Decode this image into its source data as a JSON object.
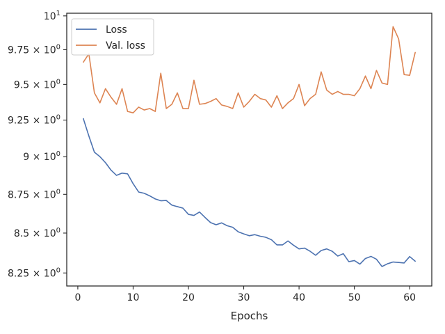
{
  "chart_data": {
    "type": "line",
    "xlabel": "Epochs",
    "ylabel": "",
    "title": "",
    "xlim": [
      -2,
      64
    ],
    "ylim": [
      8.17,
      10.02
    ],
    "yscale": "log",
    "grid": false,
    "legend_position": "top-left",
    "x_ticks": [
      0,
      10,
      20,
      30,
      40,
      50,
      60
    ],
    "x_tick_labels": [
      "0",
      "10",
      "20",
      "30",
      "40",
      "50",
      "60"
    ],
    "y_ticks": [
      8.25,
      8.5,
      8.75,
      9.0,
      9.25,
      9.5,
      9.75,
      10.0
    ],
    "y_tick_labels": [
      {
        "mantissa": "8.25 × 10",
        "exp": "0"
      },
      {
        "mantissa": "8.5 × 10",
        "exp": "0"
      },
      {
        "mantissa": "8.75 × 10",
        "exp": "0"
      },
      {
        "mantissa": "9 × 10",
        "exp": "0"
      },
      {
        "mantissa": "9.25 × 10",
        "exp": "0"
      },
      {
        "mantissa": "9.5 × 10",
        "exp": "0"
      },
      {
        "mantissa": "9.75 × 10",
        "exp": "0"
      },
      {
        "mantissa": "10",
        "exp": "1"
      }
    ],
    "x": [
      1,
      2,
      3,
      4,
      5,
      6,
      7,
      8,
      9,
      10,
      11,
      12,
      13,
      14,
      15,
      16,
      17,
      18,
      19,
      20,
      21,
      22,
      23,
      24,
      25,
      26,
      27,
      28,
      29,
      30,
      31,
      32,
      33,
      34,
      35,
      36,
      37,
      38,
      39,
      40,
      41,
      42,
      43,
      44,
      45,
      46,
      47,
      48,
      49,
      50,
      51,
      52,
      53,
      54,
      55,
      56,
      57,
      58,
      59,
      60,
      61
    ],
    "series": [
      {
        "name": "Loss",
        "color": "#4c72b0",
        "values": [
          9.26,
          9.14,
          9.03,
          9.0,
          8.96,
          8.91,
          8.875,
          8.89,
          8.885,
          8.82,
          8.765,
          8.757,
          8.74,
          8.72,
          8.708,
          8.71,
          8.68,
          8.67,
          8.66,
          8.62,
          8.613,
          8.635,
          8.6,
          8.567,
          8.553,
          8.565,
          8.547,
          8.537,
          8.508,
          8.495,
          8.483,
          8.49,
          8.48,
          8.473,
          8.458,
          8.425,
          8.425,
          8.45,
          8.423,
          8.4,
          8.405,
          8.385,
          8.36,
          8.39,
          8.4,
          8.385,
          8.355,
          8.37,
          8.32,
          8.327,
          8.305,
          8.34,
          8.353,
          8.335,
          8.29,
          8.307,
          8.318,
          8.315,
          8.312,
          8.352,
          8.323
        ]
      },
      {
        "name": "Val. loss",
        "color": "#dd8452",
        "values": [
          9.66,
          9.72,
          9.44,
          9.37,
          9.47,
          9.41,
          9.36,
          9.47,
          9.31,
          9.3,
          9.34,
          9.32,
          9.33,
          9.31,
          9.58,
          9.33,
          9.36,
          9.44,
          9.33,
          9.33,
          9.53,
          9.36,
          9.365,
          9.38,
          9.4,
          9.355,
          9.345,
          9.33,
          9.44,
          9.34,
          9.38,
          9.43,
          9.4,
          9.39,
          9.34,
          9.42,
          9.33,
          9.37,
          9.4,
          9.5,
          9.35,
          9.4,
          9.43,
          9.59,
          9.46,
          9.43,
          9.45,
          9.43,
          9.43,
          9.42,
          9.47,
          9.56,
          9.47,
          9.6,
          9.51,
          9.5,
          9.92,
          9.83,
          9.57,
          9.565,
          9.73
        ]
      }
    ]
  }
}
